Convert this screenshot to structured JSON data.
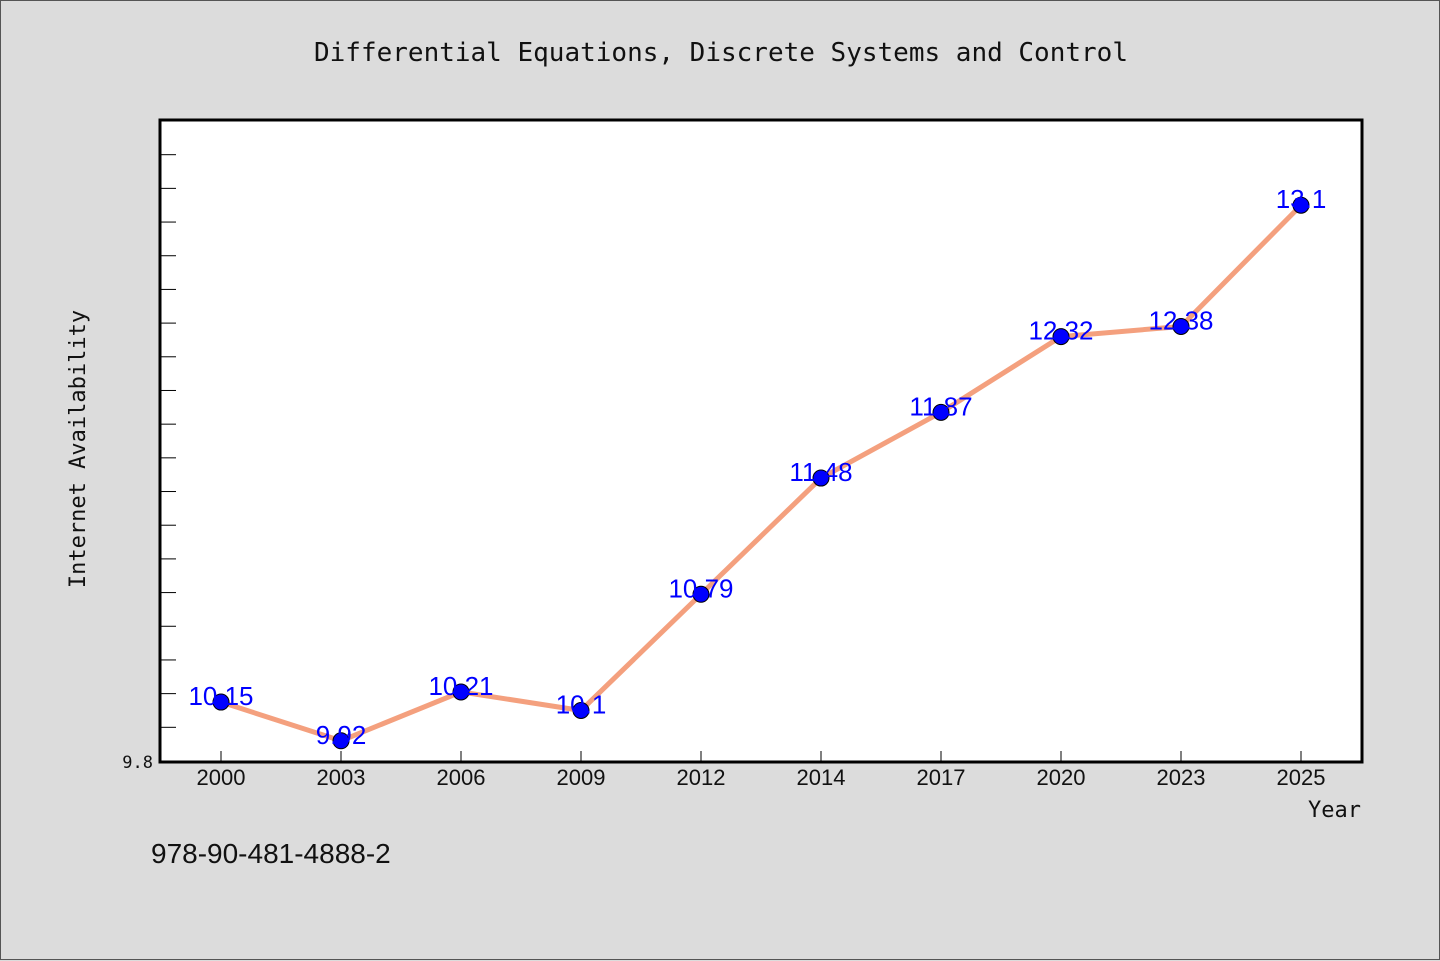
{
  "chart_data": {
    "type": "line",
    "title": "Differential Equations, Discrete Systems and Control",
    "xlabel": "Year",
    "ylabel": "Internet Availability",
    "categories": [
      "2000",
      "2003",
      "2006",
      "2009",
      "2012",
      "2014",
      "2017",
      "2020",
      "2023",
      "2025"
    ],
    "series": [
      {
        "values": [
          10.15,
          9.92,
          10.21,
          10.1,
          10.79,
          11.48,
          11.87,
          12.32,
          12.38,
          13.1
        ]
      }
    ],
    "data_labels": [
      "10.15",
      "9.92",
      "10.21",
      "10.1",
      "10.79",
      "11.48",
      "11.87",
      "12.32",
      "12.38",
      "13.1"
    ],
    "ylim": [
      9.8,
      13.6
    ],
    "y_tick_labels": [
      "9.8"
    ],
    "grid": false,
    "colors": {
      "line": "#f4a07e",
      "marker": "#0000ff",
      "marker_edge": "#000000",
      "data_label": "#0000ff",
      "plot_background": "#ffffff",
      "page_background": "#dcdcdc"
    }
  },
  "footer": {
    "isbn": "978-90-481-4888-2"
  }
}
